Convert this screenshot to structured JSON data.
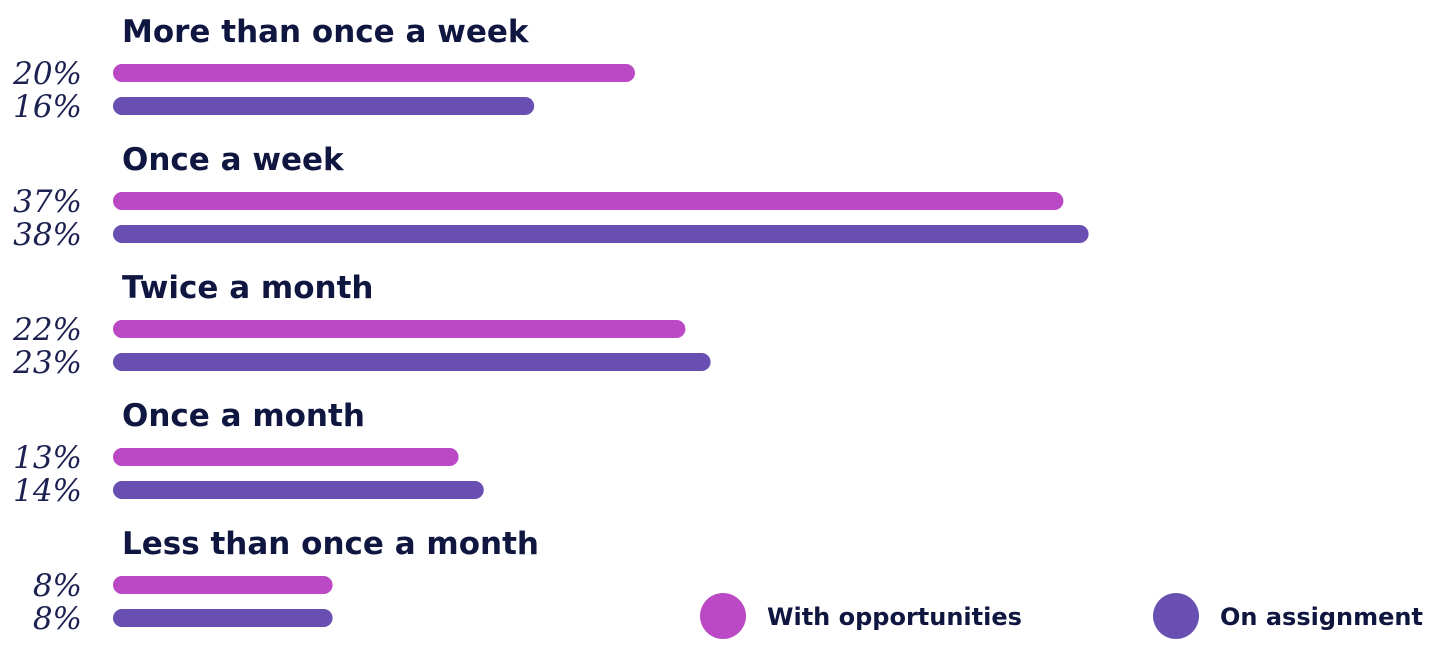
{
  "colors": {
    "with_opportunities": "#bb48c4",
    "on_assignment": "#6a4fb3",
    "text": "#0f1640"
  },
  "chart_data": {
    "type": "bar",
    "orientation": "horizontal",
    "categories": [
      "More than once a week",
      "Once a week",
      "Twice a month",
      "Once a month",
      "Less than once a month"
    ],
    "series": [
      {
        "name": "With opportunities",
        "values": [
          20,
          37,
          22,
          13,
          8
        ],
        "labels": [
          "20%",
          "37%",
          "22%",
          "13%",
          "8%"
        ]
      },
      {
        "name": "On assignment",
        "values": [
          16,
          38,
          23,
          14,
          8
        ],
        "labels": [
          "16%",
          "38%",
          "23%",
          "14%",
          "8%"
        ]
      }
    ],
    "unit": "%",
    "legend_position": "bottom-right",
    "grid": false
  }
}
